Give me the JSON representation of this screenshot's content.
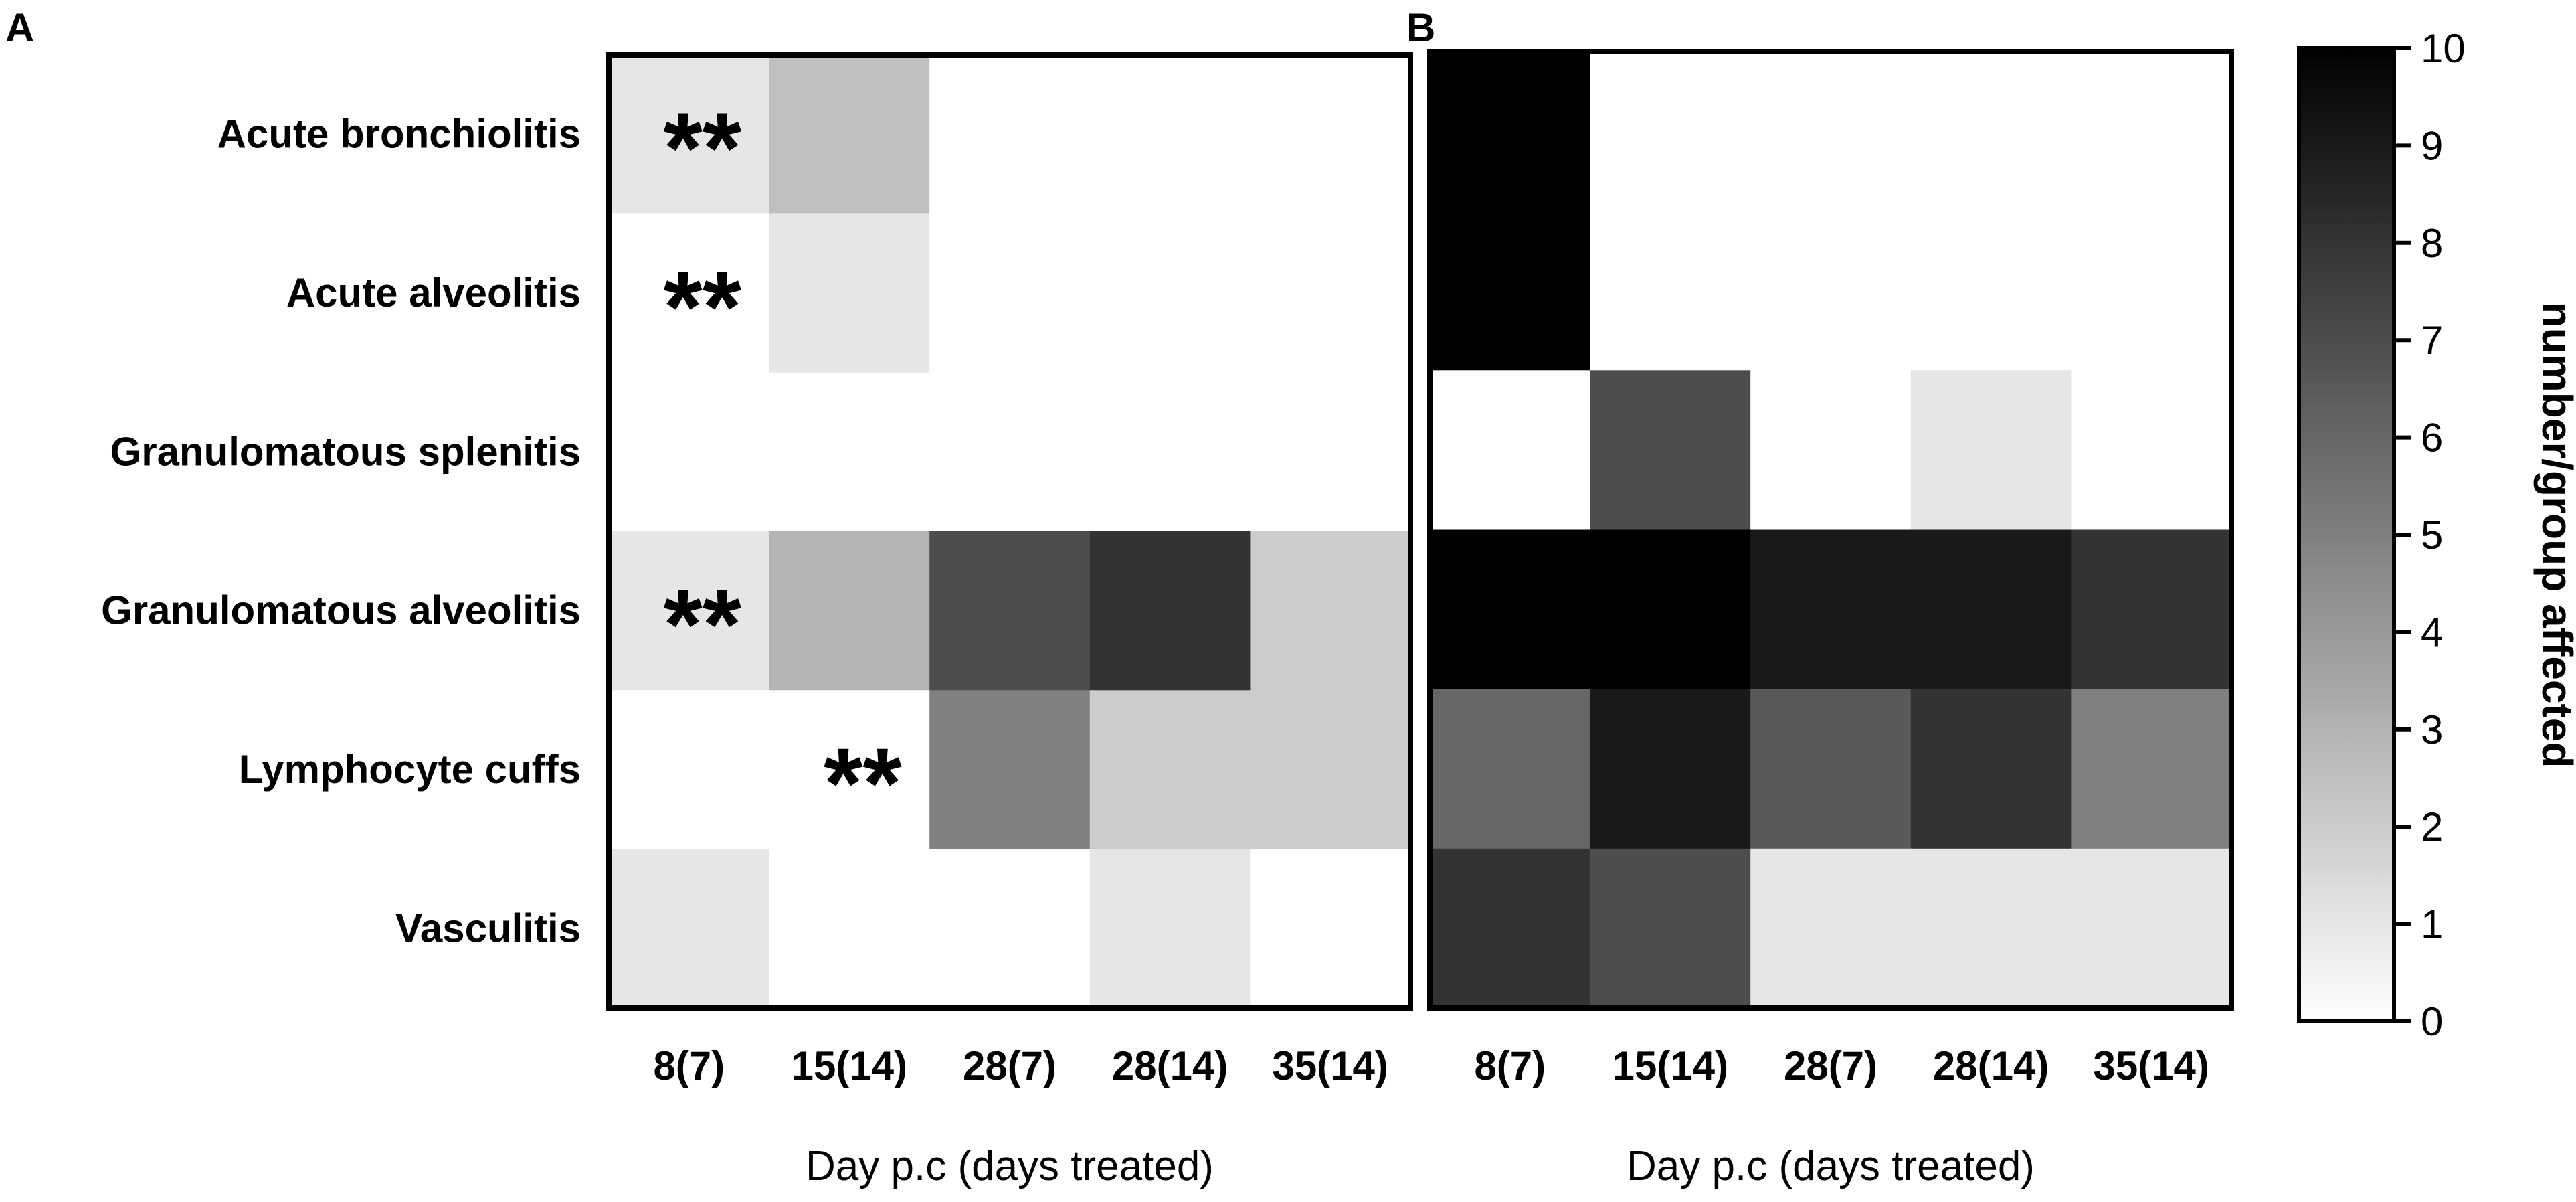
{
  "chart_data": [
    {
      "type": "heatmap",
      "panel_label": "A",
      "categories": [
        "8(7)",
        "15(14)",
        "28(7)",
        "28(14)",
        "35(14)"
      ],
      "rows": [
        "Acute bronchiolitis",
        "Acute alveolitis",
        "Granulomatous splenitis",
        "Granulomatous alveolitis",
        "Lymphocyte cuffs",
        "Vasculitis"
      ],
      "values": [
        [
          1,
          2.5,
          0,
          0,
          0
        ],
        [
          0,
          1,
          0,
          0,
          0
        ],
        [
          0,
          0,
          0,
          0,
          0
        ],
        [
          1,
          3,
          7,
          8,
          2
        ],
        [
          0,
          0,
          5,
          2,
          2
        ],
        [
          1,
          0,
          0,
          1,
          0
        ]
      ],
      "annotations": [
        {
          "row": 0,
          "col": 0,
          "text": "**"
        },
        {
          "row": 1,
          "col": 0,
          "text": "**"
        },
        {
          "row": 3,
          "col": 0,
          "text": "**"
        },
        {
          "row": 4,
          "col": 1,
          "text": "**"
        }
      ],
      "xlabel": "Day p.c (days treated)",
      "range": [
        0,
        10
      ]
    },
    {
      "type": "heatmap",
      "panel_label": "B",
      "categories": [
        "8(7)",
        "15(14)",
        "28(7)",
        "28(14)",
        "35(14)"
      ],
      "values": [
        [
          10,
          0,
          0,
          0,
          0
        ],
        [
          10,
          0,
          0,
          0,
          0
        ],
        [
          0,
          7,
          0,
          1,
          0
        ],
        [
          10,
          10,
          9,
          9,
          8
        ],
        [
          6,
          9,
          6.5,
          8,
          5
        ],
        [
          8,
          7,
          1,
          1,
          1
        ]
      ],
      "xlabel": "Day p.c (days treated)",
      "range": [
        0,
        10
      ]
    }
  ],
  "colorbar": {
    "label": "number/group affected",
    "ticks": [
      "0",
      "1",
      "2",
      "3",
      "4",
      "5",
      "6",
      "7",
      "8",
      "9",
      "10"
    ],
    "min": 0,
    "max": 10
  }
}
